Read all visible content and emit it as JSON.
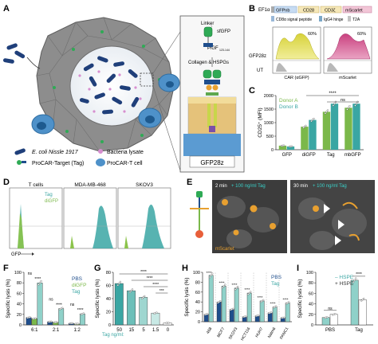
{
  "panel_letters": [
    "A",
    "B",
    "C",
    "D",
    "E",
    "F",
    "G",
    "H",
    "I"
  ],
  "colors": {
    "teal": "#3aa6a3",
    "teal_light": "#8fd1c9",
    "navy": "#1f4e8c",
    "green": "#7bb84a",
    "lime": "#c9d64a",
    "yellow_hist": "#d7d23a",
    "magenta_hist": "#c9417f",
    "grey_hist": "#b8b8b8",
    "cell_grey": "#8a8a8a",
    "bacteria": "#1f3f7a",
    "orange": "#e8a030",
    "microscopy_bg": "#2a2a2a"
  },
  "panel_a": {
    "inset_labels": {
      "linker": "Linker",
      "sfgfp": "sfGFP",
      "pigf": "PlGF",
      "pigf_sub": "123-144",
      "collagen": "Collagen & HSPGs",
      "gfp28z": "GFP28z"
    },
    "legend": {
      "ecoli": "E. coli Nissle 1917",
      "lysate": "Bacteria lysate",
      "procar_target": "ProCAR-Target (Tag)",
      "procar_t": "ProCAR-T cell"
    }
  },
  "panel_b": {
    "construct": {
      "ef1a": "EF1α",
      "gfpnb": "GFPnb",
      "cd28": "CD28",
      "cd3z": "CD3ζ",
      "mscarlet": "mScarlet",
      "cd8a_signal": "CD8α signal peptide",
      "igg4": "IgG4 hinge",
      "t2a": "T2A"
    },
    "hist_labels": {
      "gfp28z": "GFP28z",
      "ut": "UT",
      "pct1": "60%",
      "pct2": "60%",
      "x1": "CAR (αGFP)",
      "x2": "mScarlet"
    }
  },
  "panel_c": {
    "chart_data": {
      "type": "bar",
      "ylabel": "CD25⁺ (MFI)",
      "ylim": [
        0,
        2000
      ],
      "yticks": [
        "0",
        "500",
        "1000",
        "1500",
        "2000"
      ],
      "categories": [
        "GFP",
        "diGFP",
        "Tag",
        "mbGFP"
      ],
      "series": [
        {
          "name": "Donor A",
          "values": [
            150,
            850,
            1400,
            1550
          ]
        },
        {
          "name": "Donor B",
          "values": [
            120,
            1100,
            1700,
            1700
          ]
        }
      ],
      "annotations": [
        "****",
        "ns"
      ]
    }
  },
  "panel_d": {
    "titles": [
      "T cells",
      "MDA-MB-468",
      "SKOV3"
    ],
    "legend": [
      "Tag",
      "diGFP"
    ],
    "xlabel": "GFP"
  },
  "panel_e": {
    "labels": {
      "t1": "2 min + 100 ng/ml Tag",
      "t2": "30 min + 100 ng/ml Tag",
      "mscarlet": "mScarlet"
    },
    "t1_time": "2 min",
    "t1_dose": "+ 100 ng/ml Tag",
    "t2_time": "30 min",
    "t2_dose": "+ 100 ng/ml Tag"
  },
  "panel_f": {
    "chart_data": {
      "type": "bar",
      "ylabel": "Specific lysis (%)",
      "ylim": [
        0,
        100
      ],
      "yticks": [
        "0",
        "20",
        "40",
        "60",
        "80",
        "100"
      ],
      "categories": [
        "6:1",
        "2:1",
        "1:2"
      ],
      "series": [
        {
          "name": "PBS",
          "values": [
            14,
            6,
            3
          ]
        },
        {
          "name": "diGFP",
          "values": [
            12,
            5,
            2
          ]
        },
        {
          "name": "Tag",
          "values": [
            80,
            31,
            21
          ]
        }
      ],
      "annotations": [
        "ns",
        "****",
        "ns",
        "****",
        "ns",
        "****"
      ]
    }
  },
  "panel_g": {
    "chart_data": {
      "type": "bar",
      "ylabel": "Specific lysis (%)",
      "ylim": [
        0,
        80
      ],
      "yticks": [
        "0",
        "20",
        "40",
        "60",
        "80"
      ],
      "xprefix": "Tag ng/ml:",
      "categories": [
        "50",
        "15",
        "5",
        "1.5",
        "0"
      ],
      "values": [
        63,
        52,
        42,
        18,
        3
      ],
      "annotations": [
        "****",
        "****",
        "****",
        "***"
      ]
    }
  },
  "panel_h": {
    "chart_data": {
      "type": "bar",
      "ylabel": "Specific lysis (%)",
      "ylim": [
        0,
        100
      ],
      "yticks": [
        "0",
        "20",
        "40",
        "60",
        "80",
        "100"
      ],
      "categories": [
        "468",
        "MCF7",
        "SKOV3",
        "HCT116",
        "HUH7",
        "Nalm6",
        "PANC1"
      ],
      "series": [
        {
          "name": "PBS",
          "values": [
            15,
            40,
            25,
            10,
            12,
            18,
            8
          ]
        },
        {
          "name": "Tag",
          "values": [
            94,
            72,
            68,
            58,
            42,
            30,
            38
          ]
        }
      ],
      "annotations": [
        "****",
        "****",
        "****",
        "****",
        "****",
        "****",
        "****"
      ]
    }
  },
  "panel_i": {
    "chart_data": {
      "type": "bar",
      "ylabel": "Specific lysis (%)",
      "ylim": [
        0,
        100
      ],
      "yticks": [
        "0",
        "20",
        "40",
        "60",
        "80",
        "100"
      ],
      "categories": [
        "PBS",
        "Tag"
      ],
      "series": [
        {
          "name": "– HSPE",
          "values": [
            14,
            85
          ]
        },
        {
          "name": "+ HSPE",
          "values": [
            20,
            48
          ]
        }
      ],
      "annotations": [
        "ns",
        "****"
      ]
    }
  }
}
